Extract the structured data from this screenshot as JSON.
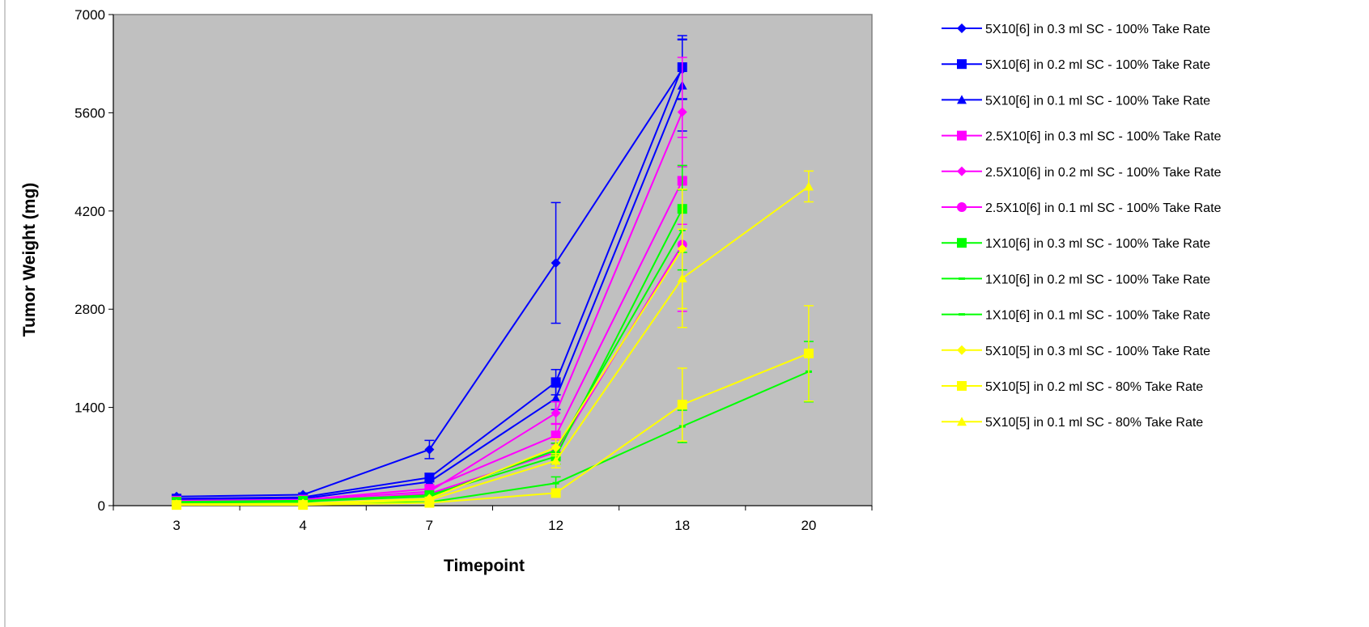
{
  "chart_data": {
    "type": "line",
    "xlabel": "Timepoint",
    "ylabel": "Tumor Weight (mg)",
    "categories": [
      "3",
      "4",
      "7",
      "12",
      "18",
      "20"
    ],
    "ylim": [
      0,
      7000
    ],
    "yticks": [
      "0",
      "1400",
      "2800",
      "4200",
      "5600",
      "7000"
    ],
    "plot_background": "#C0C0C0",
    "grid": false,
    "legend_position": "right",
    "series": [
      {
        "name": "5X10[6] in 0.3 ml SC - 100% Take Rate",
        "color": "#0000FF",
        "marker": "diamond",
        "values": [
          130,
          155,
          800,
          3460,
          6220,
          null
        ],
        "errors": [
          null,
          null,
          130,
          860,
          430,
          null
        ]
      },
      {
        "name": "5X10[6] in 0.2 ml SC - 100% Take Rate",
        "color": "#0000FF",
        "marker": "square",
        "values": [
          100,
          120,
          400,
          1760,
          6250,
          null
        ],
        "errors": [
          null,
          null,
          60,
          180,
          450,
          null
        ]
      },
      {
        "name": "5X10[6] in 0.1 ml SC - 100% Take Rate",
        "color": "#0000FF",
        "marker": "triangle",
        "values": [
          80,
          100,
          340,
          1530,
          5990,
          null
        ],
        "errors": [
          null,
          null,
          50,
          160,
          650,
          null
        ]
      },
      {
        "name": "2.5X10[6] in 0.3 ml SC - 100% Take Rate",
        "color": "#FF00FF",
        "marker": "square",
        "values": [
          70,
          85,
          240,
          1000,
          4630,
          null
        ],
        "errors": [
          null,
          null,
          40,
          170,
          620,
          null
        ]
      },
      {
        "name": "2.5X10[6] in 0.2 ml SC - 100% Take Rate",
        "color": "#FF00FF",
        "marker": "diamond",
        "values": [
          60,
          80,
          200,
          1320,
          5610,
          null
        ],
        "errors": [
          null,
          null,
          40,
          160,
          780,
          null
        ]
      },
      {
        "name": "2.5X10[6] in 0.1 ml SC - 100% Take Rate",
        "color": "#FF00FF",
        "marker": "circle",
        "values": [
          40,
          60,
          170,
          760,
          3720,
          null
        ],
        "errors": [
          null,
          null,
          40,
          120,
          950,
          null
        ]
      },
      {
        "name": "1X10[6] in 0.3 ml SC - 100% Take Rate",
        "color": "#00FF00",
        "marker": "square",
        "values": [
          55,
          70,
          150,
          700,
          4230,
          null
        ],
        "errors": [
          null,
          null,
          30,
          110,
          620,
          null
        ]
      },
      {
        "name": "1X10[6] in 0.2 ml SC - 100% Take Rate",
        "color": "#00FF00",
        "marker": "dash",
        "values": [
          40,
          60,
          130,
          790,
          3930,
          null
        ],
        "errors": [
          null,
          null,
          30,
          100,
          570,
          null
        ]
      },
      {
        "name": "1X10[6] in 0.1 ml SC - 100% Take Rate",
        "color": "#00FF00",
        "marker": "dash",
        "values": [
          30,
          40,
          50,
          320,
          1130,
          1910
        ],
        "errors": [
          null,
          null,
          null,
          90,
          230,
          430
        ]
      },
      {
        "name": "5X10[5] in 0.3 ml SC - 100% Take Rate",
        "color": "#FFFF00",
        "marker": "diamond",
        "values": [
          20,
          30,
          100,
          830,
          3660,
          null
        ],
        "errors": [
          null,
          null,
          20,
          120,
          850,
          null
        ]
      },
      {
        "name": "5X10[5] in 0.2 ml SC - 80% Take Rate",
        "color": "#FFFF00",
        "marker": "square",
        "values": [
          10,
          10,
          40,
          180,
          1440,
          2170
        ],
        "errors": [
          null,
          null,
          null,
          30,
          520,
          680
        ]
      },
      {
        "name": "5X10[5] in 0.1 ml SC - 80% Take Rate",
        "color": "#FFFF00",
        "marker": "triangle",
        "values": [
          20,
          20,
          80,
          640,
          3240,
          4550
        ],
        "errors": [
          null,
          null,
          20,
          100,
          700,
          220
        ]
      }
    ]
  }
}
